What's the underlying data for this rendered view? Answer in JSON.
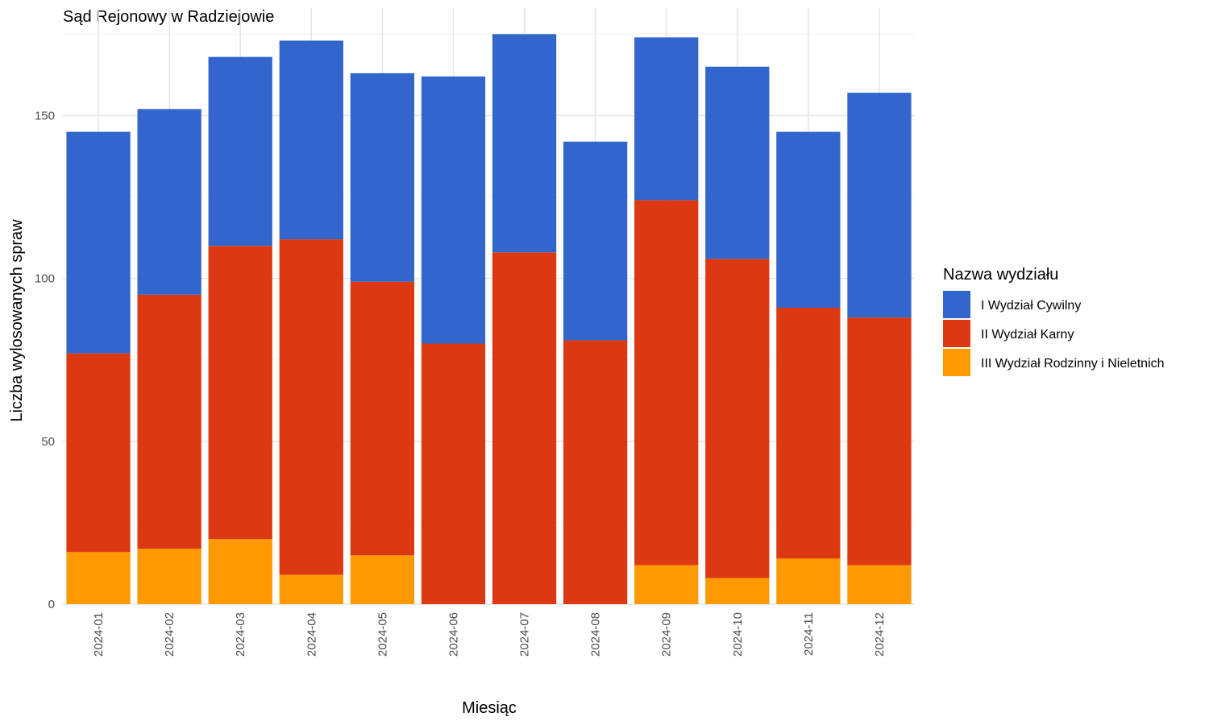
{
  "chart_data": {
    "type": "bar",
    "stacked": true,
    "title": "Sąd Rejonowy w Radziejowie",
    "xlabel": "Miesiąc",
    "ylabel": "Liczba wylosowanych spraw",
    "ylim": [
      0,
      183
    ],
    "yticks": [
      0,
      50,
      100,
      150
    ],
    "grid": true,
    "legend_title": "Nazwa wydziału",
    "legend_position": "right",
    "categories": [
      "2024-01",
      "2024-02",
      "2024-03",
      "2024-04",
      "2024-05",
      "2024-06",
      "2024-07",
      "2024-08",
      "2024-09",
      "2024-10",
      "2024-11",
      "2024-12"
    ],
    "series": [
      {
        "name": "III Wydział Rodzinny i Nieletnich",
        "color": "#FF9900",
        "values": [
          16,
          17,
          20,
          9,
          15,
          0,
          0,
          0,
          12,
          8,
          14,
          12
        ]
      },
      {
        "name": "II Wydział Karny",
        "color": "#DC3912",
        "values": [
          61,
          78,
          90,
          103,
          84,
          80,
          108,
          81,
          112,
          98,
          77,
          76
        ]
      },
      {
        "name": "I Wydział Cywilny",
        "color": "#3366CC",
        "values": [
          68,
          57,
          58,
          61,
          64,
          82,
          67,
          61,
          50,
          59,
          54,
          69
        ]
      }
    ],
    "legend_order": [
      "I Wydział Cywilny",
      "II Wydział Karny",
      "III Wydział Rodzinny i Nieletnich"
    ]
  }
}
